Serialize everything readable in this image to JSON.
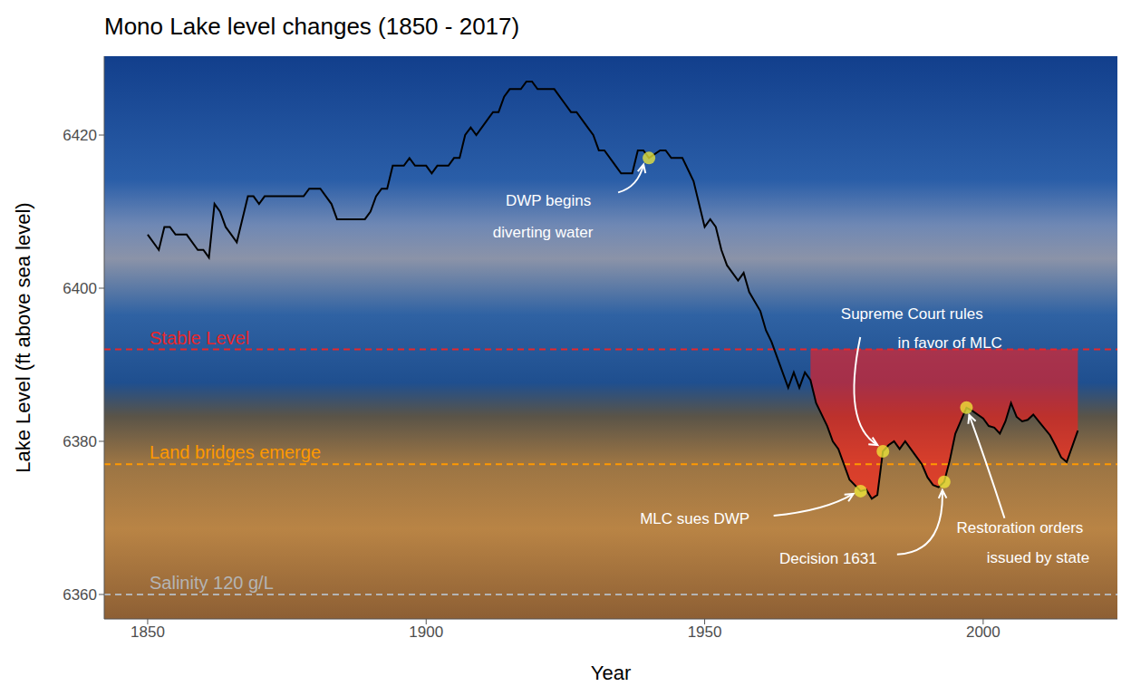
{
  "chart_data": {
    "type": "line",
    "title": "Mono Lake level changes (1850 - 2017)",
    "x_label": "Year",
    "y_label": "Lake Level (ft above sea level)",
    "x": [
      1850,
      1852,
      1853,
      1854,
      1855,
      1857,
      1859,
      1860,
      1861,
      1862,
      1863,
      1864,
      1866,
      1868,
      1869,
      1870,
      1871,
      1878,
      1879,
      1881,
      1883,
      1884,
      1889,
      1890,
      1891,
      1892,
      1893,
      1894,
      1896,
      1897,
      1898,
      1900,
      1901,
      1902,
      1904,
      1905,
      1906,
      1907,
      1908,
      1909,
      1911,
      1912,
      1913,
      1914,
      1915,
      1917,
      1918,
      1919,
      1920,
      1923,
      1925,
      1926,
      1927,
      1929,
      1930,
      1931,
      1932,
      1934,
      1935,
      1937,
      1938,
      1939,
      1940,
      1942,
      1943,
      1944,
      1946,
      1948,
      1950,
      1951,
      1952,
      1953,
      1954,
      1955,
      1956,
      1957,
      1958,
      1960,
      1961,
      1962,
      1963,
      1965,
      1966,
      1967,
      1968,
      1969,
      1970,
      1971,
      1972,
      1973,
      1974,
      1976,
      1978,
      1979,
      1980,
      1981,
      1982,
      1983,
      1984,
      1985,
      1986,
      1987,
      1988,
      1989,
      1990,
      1991,
      1992,
      1993,
      1994,
      1995,
      1997,
      1998,
      2000,
      2001,
      2002,
      2003,
      2004,
      2005,
      2006,
      2007,
      2008,
      2009,
      2010,
      2012,
      2013,
      2014,
      2015,
      2017
    ],
    "series": [
      {
        "name": "Lake Level",
        "color": "#000000",
        "line_style": "solid",
        "values": [
          6407,
          6405,
          6408,
          6408,
          6407,
          6407,
          6405,
          6405,
          6404,
          6411,
          6410,
          6408,
          6406,
          6412,
          6412,
          6411,
          6412,
          6412,
          6413,
          6413,
          6411,
          6409,
          6409,
          6410,
          6412,
          6413,
          6413,
          6416,
          6416,
          6417,
          6416,
          6416,
          6415,
          6416,
          6416,
          6417,
          6417,
          6420,
          6421,
          6420,
          6422,
          6423,
          6423,
          6425,
          6426,
          6426,
          6427,
          6427,
          6426,
          6426,
          6424,
          6423,
          6423,
          6421,
          6420,
          6418,
          6418,
          6416,
          6415,
          6415,
          6418,
          6418,
          6417,
          6418,
          6418,
          6417,
          6417,
          6414,
          6408,
          6409,
          6408,
          6405,
          6403,
          6402,
          6401,
          6402,
          6399.5,
          6397,
          6394.5,
          6393,
          6391,
          6387,
          6389,
          6387,
          6389,
          6388,
          6385,
          6383.5,
          6382,
          6380,
          6379,
          6375,
          6373.5,
          6373.7,
          6372.5,
          6373,
          6378.7,
          6379.5,
          6380,
          6379,
          6380,
          6379,
          6378,
          6377,
          6375.3,
          6374.3,
          6374,
          6374.7,
          6377.5,
          6381,
          6384.4,
          6384,
          6383,
          6382,
          6381.8,
          6381,
          6382.6,
          6385,
          6383.2,
          6382.6,
          6382.8,
          6383.5,
          6382.6,
          6380.8,
          6379.4,
          6377.9,
          6377.3,
          6381.4
        ]
      }
    ],
    "xlim": [
      1842.2,
      2024.1
    ],
    "xticks": [
      1850,
      1900,
      1950,
      2000
    ],
    "ylim": [
      6356.8,
      6430.3
    ],
    "yticks": [
      6360,
      6380,
      6400,
      6420
    ],
    "grid": false,
    "reference_lines": [
      {
        "value": 6392,
        "label": "Stable Level",
        "color": "#e8262a",
        "line_style": "dashed"
      },
      {
        "value": 6377,
        "label": "Land bridges emerge",
        "color": "#ff9900",
        "line_style": "dashed"
      },
      {
        "value": 6360,
        "label": "Salinity 120 g/L",
        "color": "#b4b4b4",
        "line_style": "dashed"
      }
    ],
    "shaded_region": {
      "x": [
        1969,
        2017
      ],
      "to": 6392,
      "color": "#ff1a1a"
    },
    "annotations": [
      {
        "text": "DWP begins\ndiverting water",
        "x": 1940,
        "y": 6417
      },
      {
        "text": "Supreme Court rules\nin favor of MLC",
        "x": 1982,
        "y": 6378.7
      },
      {
        "text": "MLC sues DWP",
        "x": 1978,
        "y": 6373.5
      },
      {
        "text": "Decision 1631",
        "x": 1993,
        "y": 6374.7
      },
      {
        "text": "Restoration orders\nissued by state",
        "x": 1997,
        "y": 6384.4
      }
    ]
  }
}
